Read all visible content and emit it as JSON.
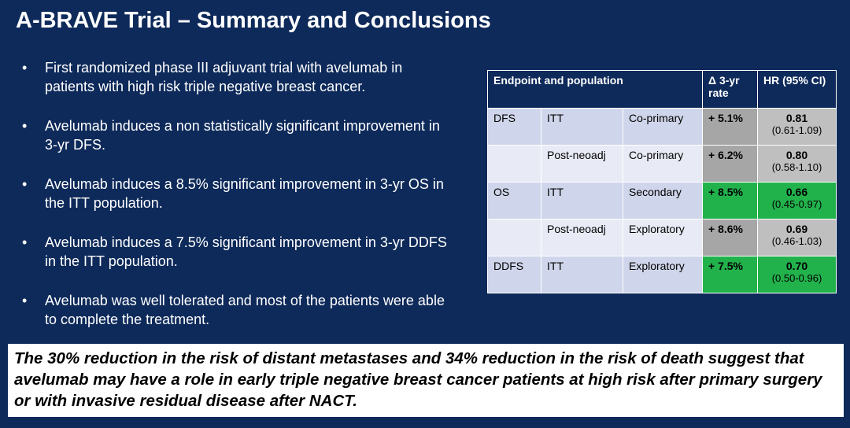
{
  "title": "A-BRAVE Trial – Summary and Conclusions",
  "bullets": [
    "First randomized phase III adjuvant trial with avelumab in patients with high risk triple negative breast cancer.",
    "Avelumab induces a non statistically significant improvement in 3-yr DFS.",
    "Avelumab induces a 8.5% significant improvement in 3-yr OS in the ITT population.",
    "Avelumab induces a 7.5% significant improvement in 3-yr DDFS in the ITT population.",
    "Avelumab was well tolerated and most of the patients were able to complete the treatment."
  ],
  "table": {
    "header": [
      "Endpoint and population",
      "Δ 3-yr rate",
      "HR (95% CI)"
    ],
    "rows": [
      [
        "DFS",
        "ITT",
        "Co-primary",
        "+ 5.1%",
        "0.81",
        "(0.61-1.09)"
      ],
      [
        null,
        "Post-neoadj",
        "Co-primary",
        "+ 6.2%",
        "0.80",
        "(0.58-1.10)"
      ],
      [
        "OS",
        "ITT",
        "Secondary",
        "+ 8.5%",
        "0.66",
        "(0.45-0.97)"
      ],
      [
        null,
        "Post-neoadj",
        "Exploratory",
        "+ 8.6%",
        "0.69",
        "(0.46-1.03)"
      ],
      [
        "DDFS",
        "ITT",
        "Exploratory",
        "+ 7.5%",
        "0.70",
        "(0.50-0.96)"
      ]
    ]
  },
  "conclusion": "The 30% reduction in the risk of distant metastases and 34% reduction in the risk of death suggest that avelumab may have a role in early triple negative breast cancer patients at high risk after primary surgery or with invasive residual disease after NACT."
}
